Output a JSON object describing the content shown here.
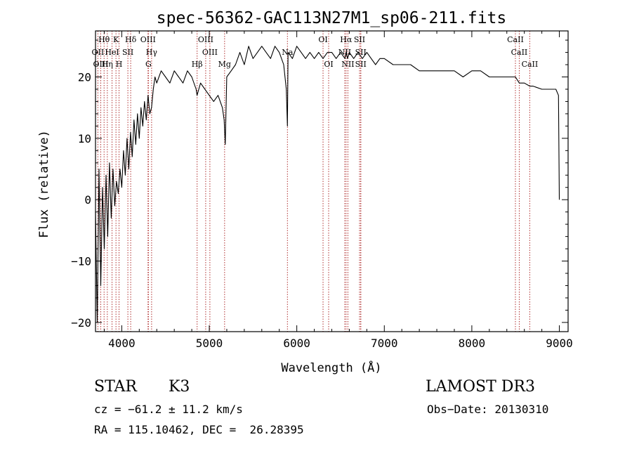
{
  "chart_data": {
    "type": "line",
    "title": "spec-56362-GAC113N27M1_sp06-211.fits",
    "xlabel": "Wavelength (Å)",
    "ylabel": "Flux (relative)",
    "xlim": [
      3700,
      9100
    ],
    "ylim": [
      -21.5,
      27.5
    ],
    "xticks": [
      4000,
      5000,
      6000,
      7000,
      8000,
      9000
    ],
    "yticks": [
      -20,
      -10,
      0,
      10,
      20
    ],
    "grid": false,
    "series": [
      {
        "name": "flux",
        "x": [
          3700,
          3720,
          3740,
          3760,
          3780,
          3800,
          3820,
          3840,
          3860,
          3880,
          3900,
          3920,
          3940,
          3960,
          3980,
          4000,
          4020,
          4040,
          4060,
          4080,
          4100,
          4120,
          4140,
          4160,
          4180,
          4200,
          4220,
          4240,
          4260,
          4280,
          4300,
          4320,
          4340,
          4360,
          4380,
          4400,
          4450,
          4500,
          4550,
          4600,
          4650,
          4700,
          4750,
          4800,
          4850,
          4860,
          4900,
          4950,
          5000,
          5050,
          5100,
          5150,
          5170,
          5183,
          5200,
          5250,
          5300,
          5350,
          5400,
          5450,
          5500,
          5550,
          5600,
          5650,
          5700,
          5750,
          5800,
          5850,
          5880,
          5893,
          5900,
          5950,
          6000,
          6050,
          6100,
          6150,
          6200,
          6250,
          6300,
          6350,
          6400,
          6450,
          6500,
          6550,
          6563,
          6580,
          6600,
          6650,
          6700,
          6750,
          6800,
          6850,
          6900,
          6950,
          7000,
          7100,
          7200,
          7300,
          7400,
          7500,
          7600,
          7700,
          7800,
          7900,
          8000,
          8100,
          8200,
          8300,
          8400,
          8498,
          8542,
          8600,
          8662,
          8700,
          8800,
          8900,
          8960,
          8990,
          9000
        ],
        "values": [
          -2,
          -20,
          5,
          -14,
          2,
          -8,
          4,
          -6,
          6,
          -3,
          5,
          -1,
          3,
          1,
          5,
          2,
          8,
          4,
          10,
          5,
          11,
          7,
          13,
          9,
          14,
          10,
          15,
          12,
          16,
          13,
          17,
          14,
          15,
          18,
          20,
          19,
          21,
          20,
          19,
          21,
          20,
          19,
          21,
          20,
          18,
          17,
          19,
          18,
          17,
          16,
          17,
          15,
          13,
          9,
          20,
          21,
          22,
          24,
          22,
          25,
          23,
          24,
          25,
          24,
          23,
          25,
          24,
          22,
          18,
          12,
          24,
          23,
          25,
          24,
          23,
          24,
          23,
          24,
          23,
          24,
          24,
          23,
          24,
          23,
          24,
          23,
          24,
          23,
          24,
          23,
          24,
          23,
          22,
          23,
          23,
          22,
          22,
          22,
          21,
          21,
          21,
          21,
          21,
          20,
          21,
          21,
          20,
          20,
          20,
          20,
          19,
          19,
          18.5,
          18.5,
          18,
          18,
          18,
          17,
          0
        ]
      }
    ],
    "lines": [
      {
        "name": "Hθ",
        "wavelength": 3798,
        "row": 1
      },
      {
        "name": "OII",
        "wavelength": 3727,
        "row": 2
      },
      {
        "name": "OIII",
        "wavelength": 3760,
        "row": 3
      },
      {
        "name": "Hη",
        "wavelength": 3835,
        "row": 3
      },
      {
        "name": "HeI",
        "wavelength": 3889,
        "row": 2
      },
      {
        "name": "K",
        "wavelength": 3934,
        "row": 1
      },
      {
        "name": "H",
        "wavelength": 3969,
        "row": 3
      },
      {
        "name": "SII",
        "wavelength": 4070,
        "row": 2
      },
      {
        "name": "Hδ",
        "wavelength": 4102,
        "row": 1
      },
      {
        "name": "OIII",
        "wavelength": 4300,
        "row": 1
      },
      {
        "name": "Hγ",
        "wavelength": 4341,
        "row": 2
      },
      {
        "name": "G",
        "wavelength": 4305,
        "row": 3
      },
      {
        "name": "Hβ",
        "wavelength": 4861,
        "row": 3
      },
      {
        "name": "OIII",
        "wavelength": 4959,
        "row": 1
      },
      {
        "name": "OIII",
        "wavelength": 5007,
        "row": 2
      },
      {
        "name": "Mg",
        "wavelength": 5175,
        "row": 3
      },
      {
        "name": "Na",
        "wavelength": 5893,
        "row": 2
      },
      {
        "name": "OI",
        "wavelength": 6300,
        "row": 1
      },
      {
        "name": "OI",
        "wavelength": 6364,
        "row": 3
      },
      {
        "name": "Hα",
        "wavelength": 6563,
        "row": 1
      },
      {
        "name": "NII",
        "wavelength": 6548,
        "row": 2
      },
      {
        "name": "NII",
        "wavelength": 6584,
        "row": 3
      },
      {
        "name": "SII",
        "wavelength": 6717,
        "row": 1
      },
      {
        "name": "SII",
        "wavelength": 6731,
        "row": 2
      },
      {
        "name": "SII",
        "wavelength": 6731,
        "row": 3
      },
      {
        "name": "CaII",
        "wavelength": 8498,
        "row": 1
      },
      {
        "name": "CaII",
        "wavelength": 8542,
        "row": 2
      },
      {
        "name": "CaII",
        "wavelength": 8662,
        "row": 3
      }
    ]
  },
  "info": {
    "class_label": "STAR",
    "subclass": "K3",
    "survey": "LAMOST DR3",
    "redshift": "cz = −61.2 ± 11.2 km/s",
    "obs_date": "Obs−Date: 20130310",
    "coords": "RA = 115.10462, DEC =  26.28395"
  }
}
